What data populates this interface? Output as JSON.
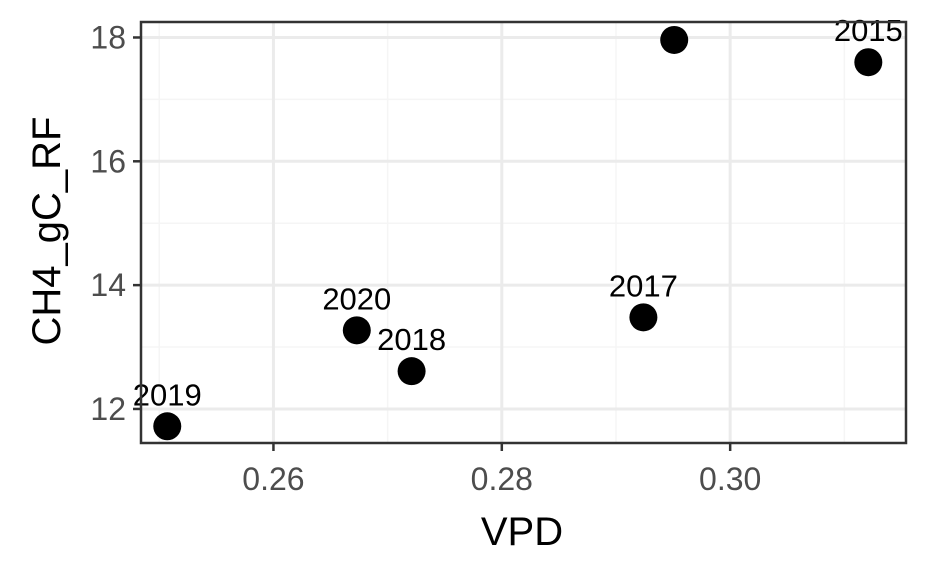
{
  "chart_data": {
    "type": "scatter",
    "title": "",
    "xlabel": "VPD",
    "ylabel": "CH4_gC_RF",
    "xlim": [
      0.2484,
      0.3154
    ],
    "ylim": [
      11.45,
      18.25
    ],
    "x_ticks": [
      {
        "value": 0.26,
        "label": "0.26"
      },
      {
        "value": 0.28,
        "label": "0.28"
      },
      {
        "value": 0.3,
        "label": "0.30"
      }
    ],
    "y_ticks": [
      {
        "value": 12,
        "label": "12"
      },
      {
        "value": 14,
        "label": "14"
      },
      {
        "value": 16,
        "label": "16"
      },
      {
        "value": 18,
        "label": "18"
      }
    ],
    "grid": true,
    "legend": "none",
    "points": [
      {
        "x": 0.2507,
        "y": 11.72,
        "label": "2019"
      },
      {
        "x": 0.2673,
        "y": 13.27,
        "label": "2020"
      },
      {
        "x": 0.2721,
        "y": 12.61,
        "label": "2018"
      },
      {
        "x": 0.2924,
        "y": 13.48,
        "label": "2017"
      },
      {
        "x": 0.2951,
        "y": 17.96,
        "label": ""
      },
      {
        "x": 0.3121,
        "y": 17.6,
        "label": "2015"
      }
    ],
    "colors": {
      "point": "#000000",
      "grid_major": "#ebebeb",
      "grid_minor": "#f5f5f5",
      "panel_border": "#333333",
      "tick_text": "#4d4d4d"
    }
  }
}
